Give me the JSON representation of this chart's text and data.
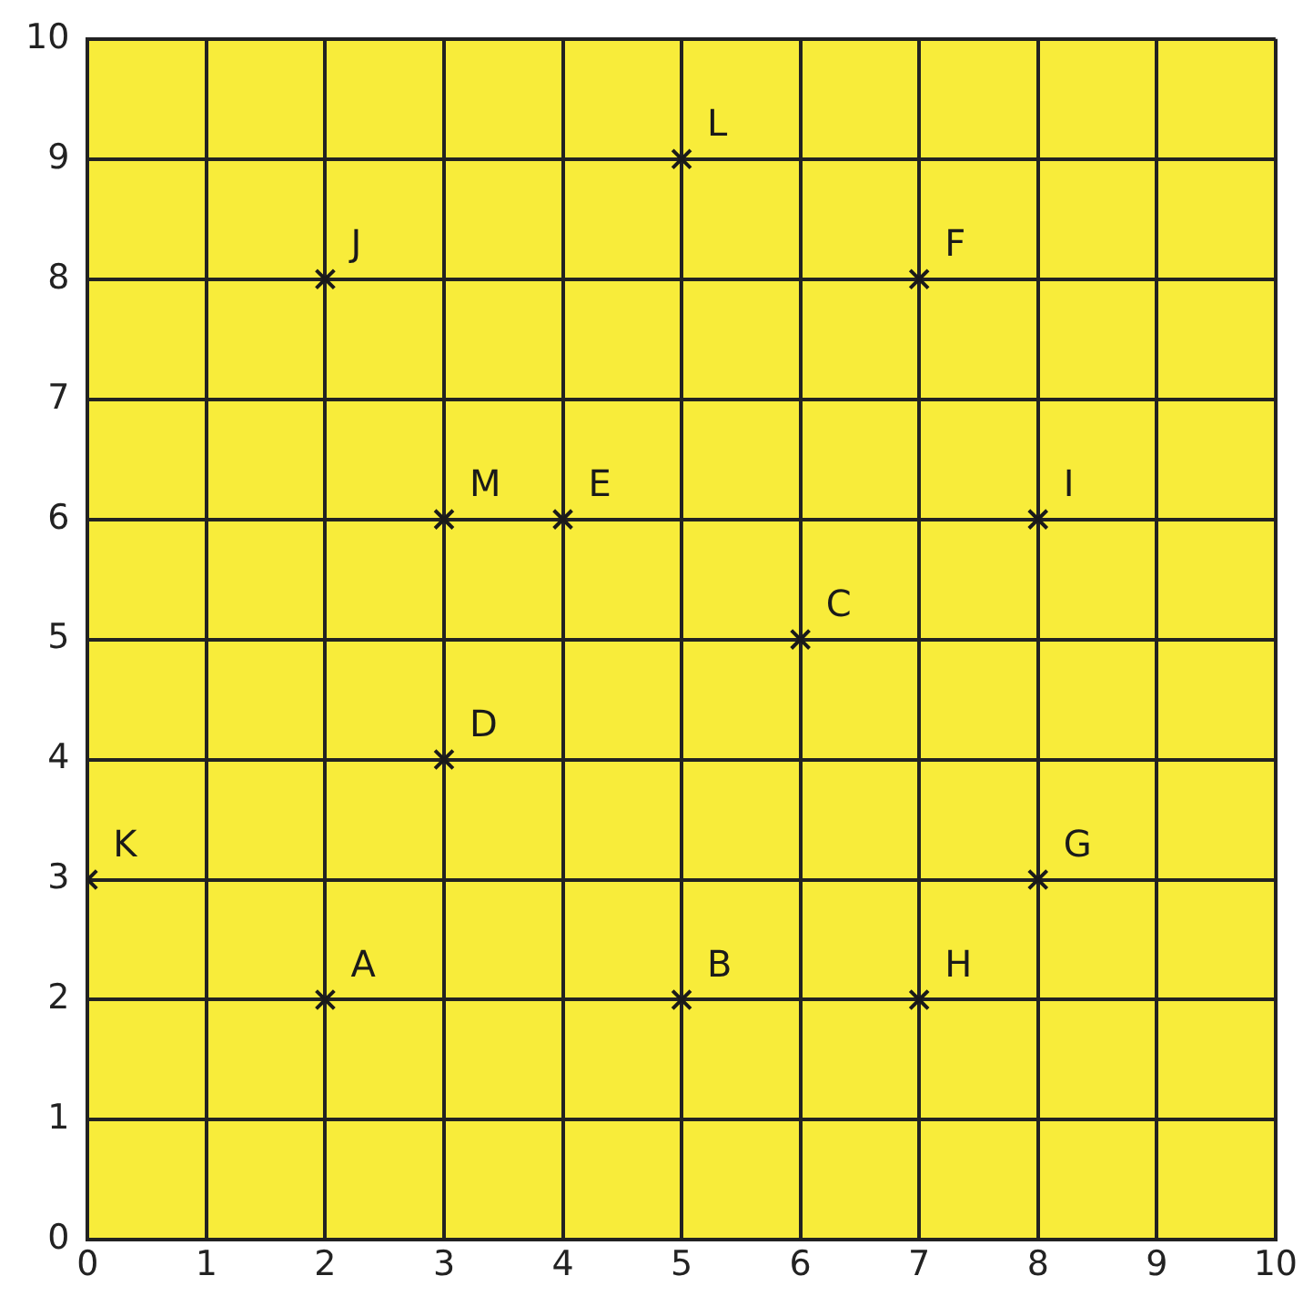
{
  "chart_data": {
    "type": "scatter",
    "x": [
      0,
      2,
      5,
      7,
      8,
      3,
      6,
      3,
      4,
      8,
      2,
      7,
      5
    ],
    "values": [
      3,
      2,
      2,
      2,
      3,
      4,
      5,
      6,
      6,
      6,
      8,
      8,
      9
    ],
    "color": "#1a1a1a",
    "marker": "cross",
    "xlim": [
      0,
      10
    ],
    "ylim": [
      0,
      10
    ],
    "xticks": [
      0,
      1,
      2,
      3,
      4,
      5,
      6,
      7,
      8,
      9,
      10
    ],
    "yticks": [
      0,
      1,
      2,
      3,
      4,
      5,
      6,
      7,
      8,
      9,
      10
    ],
    "grid": true,
    "legend": false,
    "annotations": [
      {
        "text": "K",
        "x": 0,
        "y": 3
      },
      {
        "text": "A",
        "x": 2,
        "y": 2
      },
      {
        "text": "B",
        "x": 5,
        "y": 2
      },
      {
        "text": "H",
        "x": 7,
        "y": 2
      },
      {
        "text": "G",
        "x": 8,
        "y": 3
      },
      {
        "text": "D",
        "x": 3,
        "y": 4
      },
      {
        "text": "C",
        "x": 6,
        "y": 5
      },
      {
        "text": "M",
        "x": 3,
        "y": 6
      },
      {
        "text": "E",
        "x": 4,
        "y": 6
      },
      {
        "text": "I",
        "x": 8,
        "y": 6
      },
      {
        "text": "J",
        "x": 2,
        "y": 8
      },
      {
        "text": "F",
        "x": 7,
        "y": 8
      },
      {
        "text": "L",
        "x": 5,
        "y": 9
      }
    ]
  }
}
